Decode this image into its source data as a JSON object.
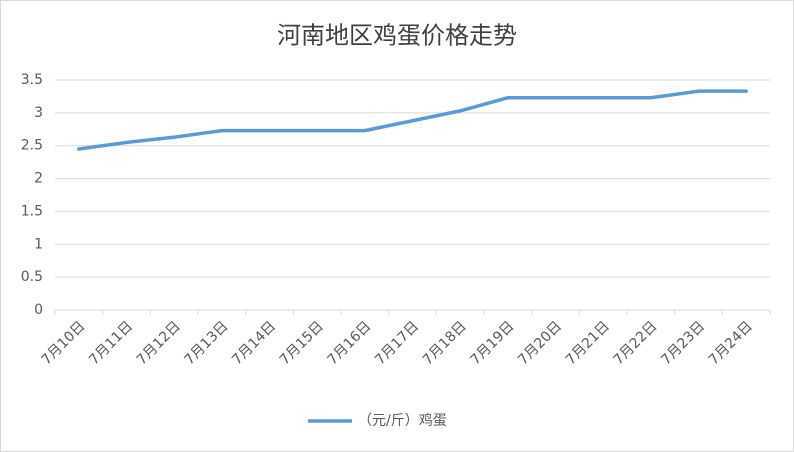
{
  "chart_data": {
    "type": "line",
    "title": "河南地区鸡蛋价格走势",
    "categories": [
      "7月10日",
      "7月11日",
      "7月12日",
      "7月13日",
      "7月14日",
      "7月15日",
      "7月16日",
      "7月17日",
      "7月18日",
      "7月19日",
      "7月20日",
      "7月21日",
      "7月22日",
      "7月23日",
      "7月24日"
    ],
    "series": [
      {
        "name": "（元/斤）鸡蛋",
        "color": "#5b9bd5",
        "values": [
          2.45,
          2.55,
          2.63,
          2.73,
          2.73,
          2.73,
          2.73,
          2.88,
          3.03,
          3.23,
          3.23,
          3.23,
          3.23,
          3.33,
          3.33
        ]
      }
    ],
    "ylim": [
      0,
      3.5
    ],
    "yticks": [
      0,
      0.5,
      1,
      1.5,
      2,
      2.5,
      3,
      3.5
    ],
    "grid": true,
    "legend": "bottom"
  }
}
